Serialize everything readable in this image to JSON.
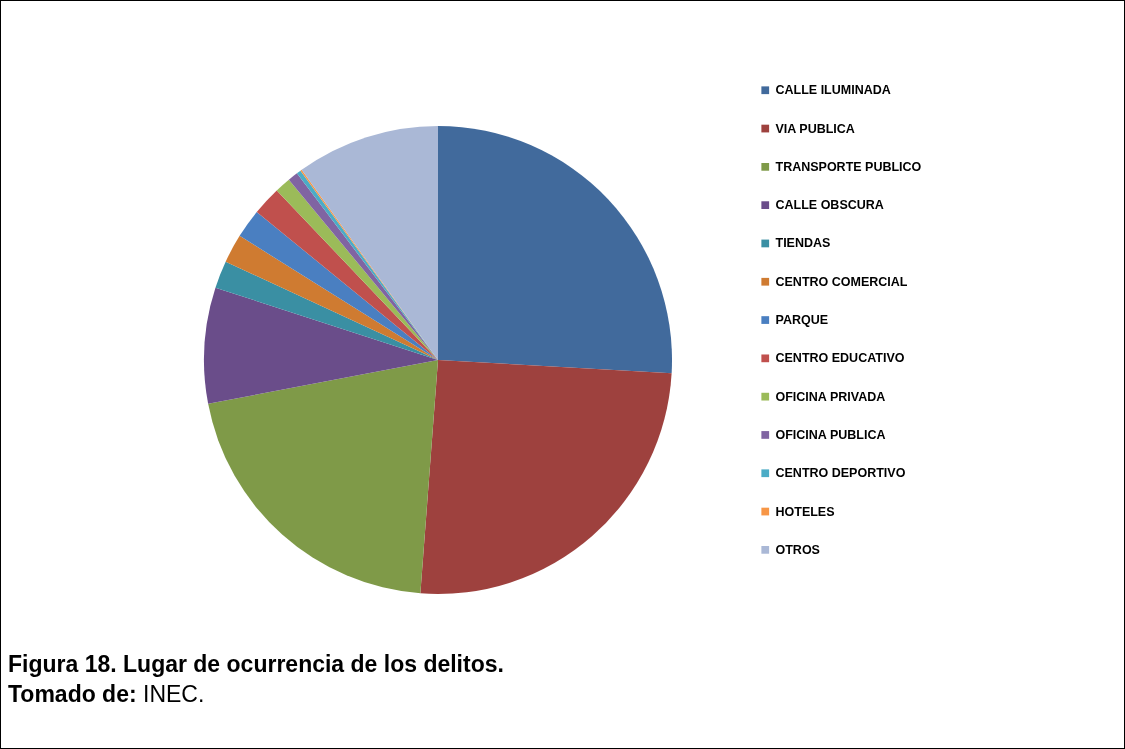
{
  "chart_data": {
    "type": "pie",
    "title": "Figura 18. Lugar de ocurrencia de los delitos.",
    "annotations": [
      "Tomado de: INEC."
    ],
    "categories": [
      "CALLE ILUMINADA",
      "VIA PUBLICA",
      "TRANSPORTE PUBLICO",
      "CALLE OBSCURA",
      "TIENDAS",
      "CENTRO COMERCIAL",
      "PARQUE",
      "CENTRO EDUCATIVO",
      "OFICINA PRIVADA",
      "OFICINA PUBLICA",
      "CENTRO DEPORTIVO",
      "HOTELES",
      "OTROS"
    ],
    "values": [
      25.9,
      25.3,
      20.8,
      8.0,
      1.9,
      2.0,
      2.0,
      2.0,
      1.1,
      0.7,
      0.3,
      0.1,
      9.9
    ],
    "colors": [
      "#416a9c",
      "#9e413e",
      "#7f9a48",
      "#6a4d8a",
      "#3a8fa3",
      "#cf7b31",
      "#4a7fc1",
      "#c0504d",
      "#9bbb59",
      "#8064a2",
      "#4bacc6",
      "#f79646",
      "#aab8d6"
    ],
    "legend": "right"
  }
}
